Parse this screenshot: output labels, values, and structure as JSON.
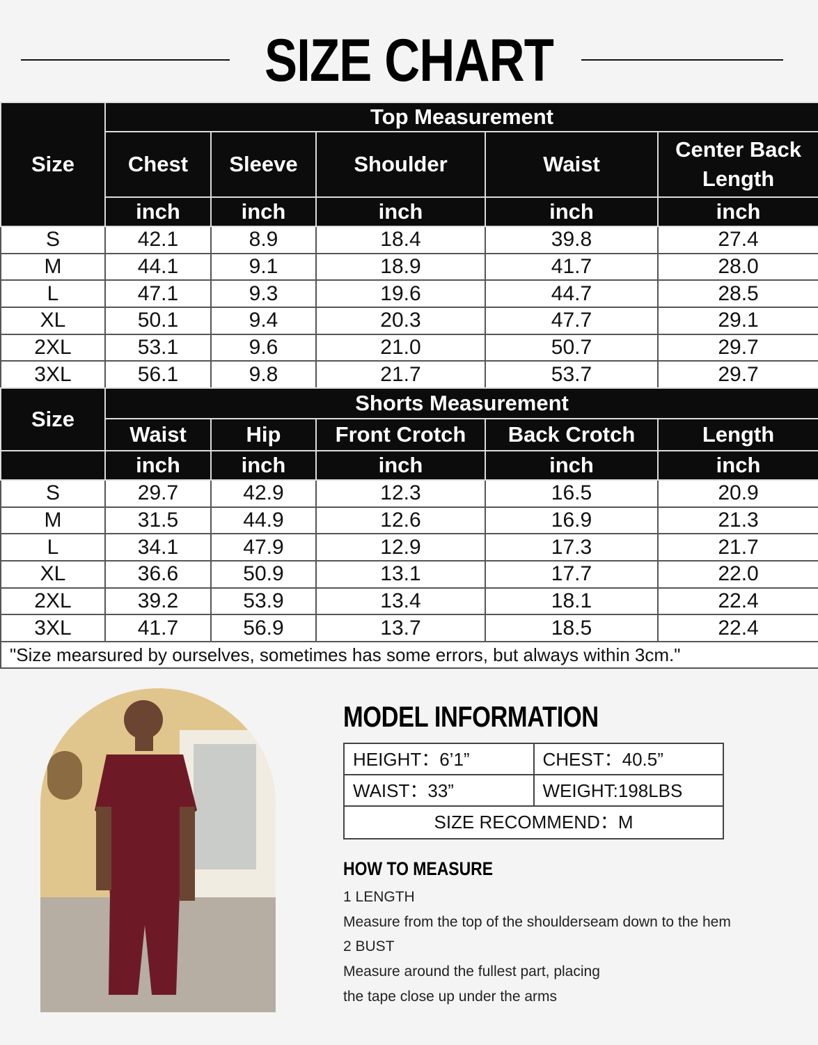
{
  "title": "SIZE CHART",
  "top": {
    "section": "Top Measurement",
    "size_label": "Size",
    "columns": [
      "Chest",
      "Sleeve",
      "Shoulder",
      "Waist",
      "Center Back Length"
    ],
    "unit": "inch",
    "rows": [
      [
        "S",
        "42.1",
        "8.9",
        "18.4",
        "39.8",
        "27.4"
      ],
      [
        "M",
        "44.1",
        "9.1",
        "18.9",
        "41.7",
        "28.0"
      ],
      [
        "L",
        "47.1",
        "9.3",
        "19.6",
        "44.7",
        "28.5"
      ],
      [
        "XL",
        "50.1",
        "9.4",
        "20.3",
        "47.7",
        "29.1"
      ],
      [
        "2XL",
        "53.1",
        "9.6",
        "21.0",
        "50.7",
        "29.7"
      ],
      [
        "3XL",
        "56.1",
        "9.8",
        "21.7",
        "53.7",
        "29.7"
      ]
    ]
  },
  "shorts": {
    "section": "Shorts Measurement",
    "size_label": "Size",
    "columns": [
      "Waist",
      "Hip",
      "Front Crotch",
      "Back Crotch",
      "Length"
    ],
    "unit": "inch",
    "rows": [
      [
        "S",
        "29.7",
        "42.9",
        "12.3",
        "16.5",
        "20.9"
      ],
      [
        "M",
        "31.5",
        "44.9",
        "12.6",
        "16.9",
        "21.3"
      ],
      [
        "L",
        "34.1",
        "47.9",
        "12.9",
        "17.3",
        "21.7"
      ],
      [
        "XL",
        "36.6",
        "50.9",
        "13.1",
        "17.7",
        "22.0"
      ],
      [
        "2XL",
        "39.2",
        "53.9",
        "13.4",
        "18.1",
        "22.4"
      ],
      [
        "3XL",
        "41.7",
        "56.9",
        "13.7",
        "18.5",
        "22.4"
      ]
    ]
  },
  "note": "\"Size mearsured by ourselves, sometimes has some errors, but always within 3cm.\"",
  "model": {
    "title": "MODEL INFORMATION",
    "height": "HEIGHT：6’1”",
    "chest": "CHEST：40.5”",
    "waist": "WAIST：33”",
    "weight": "WEIGHT:198LBS",
    "size": "SIZE RECOMMEND：M"
  },
  "how": {
    "title": "HOW TO MEASURE",
    "items": [
      {
        "heading": "1 LENGTH",
        "lines": [
          "Measure from the top of the shoulderseam down to the hem"
        ]
      },
      {
        "heading": "2 BUST",
        "lines": [
          "Measure around the fullest part, placing",
          "the tape close up under the arms"
        ]
      }
    ]
  },
  "colors": {
    "header_bg": "#0c0c0c",
    "garment": "#6e1a26"
  }
}
